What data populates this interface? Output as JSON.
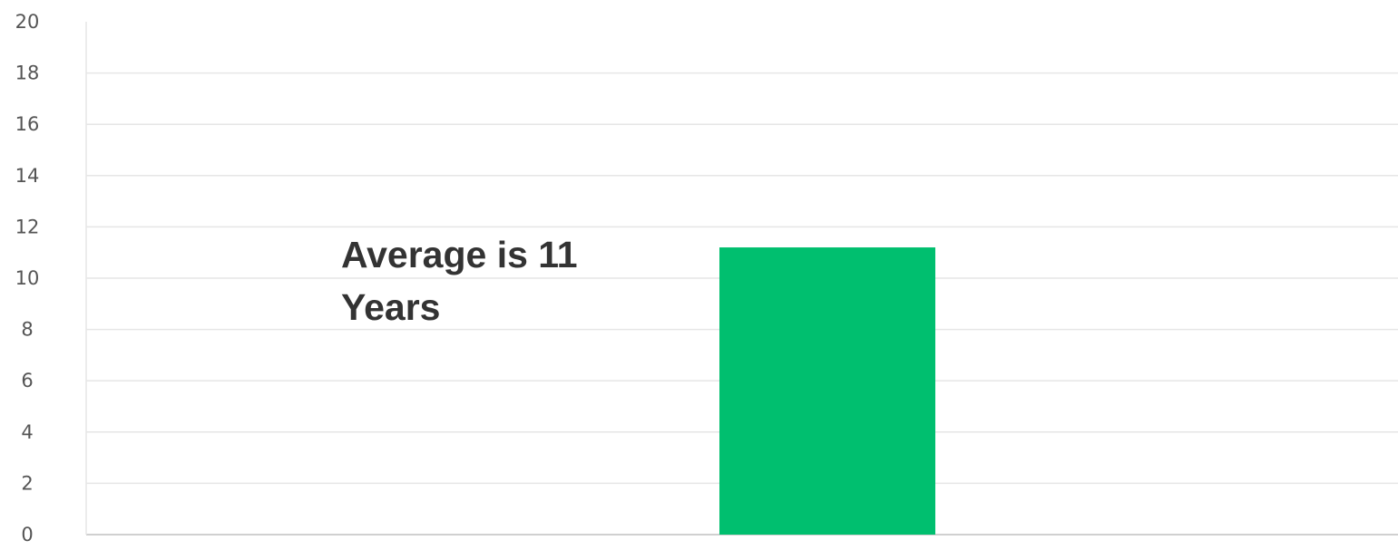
{
  "chart_data": {
    "type": "bar",
    "categories": [
      ""
    ],
    "values": [
      11.2
    ],
    "title": "",
    "xlabel": "",
    "ylabel": "",
    "ylim": [
      0,
      20
    ],
    "y_ticks": [
      0,
      2,
      4,
      6,
      8,
      10,
      12,
      14,
      16,
      18,
      20
    ],
    "grid": true,
    "legend": "none",
    "annotation": {
      "line1": "Average is 11",
      "line2": "Years"
    },
    "colors": {
      "bar": "#00BF6F",
      "grid": "#e6e6e6",
      "tick_text": "#555555",
      "annotation_text": "#333333"
    }
  }
}
